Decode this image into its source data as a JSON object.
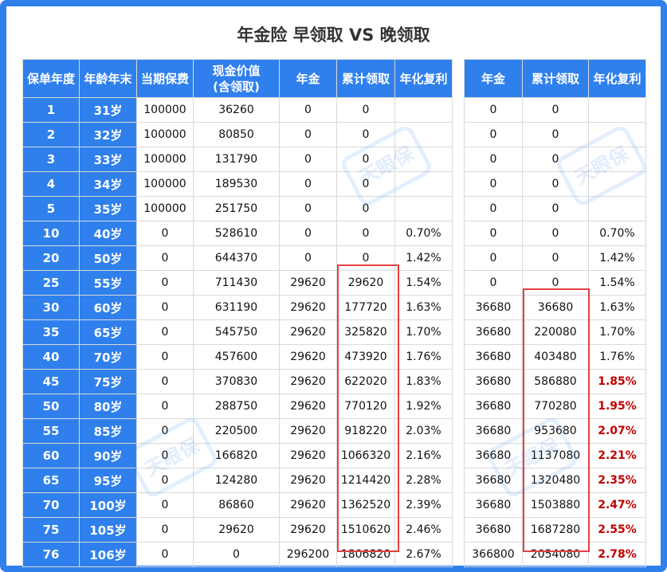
{
  "title": "年金险 早领取 VS 晚领取",
  "watermark": "天眼保",
  "left_table": {
    "headers": [
      "保单年度",
      "年龄年末",
      "当期保费",
      "现金价值(含领取)",
      "年金",
      "累计领取",
      "年化复利"
    ],
    "header_cash_value_line1": "现金价值",
    "header_cash_value_line2": "(含领取)",
    "rows": [
      [
        "1",
        "31岁",
        "100000",
        "36260",
        "0",
        "0",
        ""
      ],
      [
        "2",
        "32岁",
        "100000",
        "80850",
        "0",
        "0",
        ""
      ],
      [
        "3",
        "33岁",
        "100000",
        "131790",
        "0",
        "0",
        ""
      ],
      [
        "4",
        "34岁",
        "100000",
        "189530",
        "0",
        "0",
        ""
      ],
      [
        "5",
        "35岁",
        "100000",
        "251750",
        "0",
        "0",
        ""
      ],
      [
        "10",
        "40岁",
        "0",
        "528610",
        "0",
        "0",
        "0.70%"
      ],
      [
        "20",
        "50岁",
        "0",
        "644370",
        "0",
        "0",
        "1.42%"
      ],
      [
        "25",
        "55岁",
        "0",
        "711430",
        "29620",
        "29620",
        "1.54%"
      ],
      [
        "30",
        "60岁",
        "0",
        "631190",
        "29620",
        "177720",
        "1.63%"
      ],
      [
        "35",
        "65岁",
        "0",
        "545750",
        "29620",
        "325820",
        "1.70%"
      ],
      [
        "40",
        "70岁",
        "0",
        "457600",
        "29620",
        "473920",
        "1.76%"
      ],
      [
        "45",
        "75岁",
        "0",
        "370830",
        "29620",
        "622020",
        "1.83%"
      ],
      [
        "50",
        "80岁",
        "0",
        "288750",
        "29620",
        "770120",
        "1.92%"
      ],
      [
        "55",
        "85岁",
        "0",
        "220500",
        "29620",
        "918220",
        "2.03%"
      ],
      [
        "60",
        "90岁",
        "0",
        "166820",
        "29620",
        "1066320",
        "2.16%"
      ],
      [
        "65",
        "95岁",
        "0",
        "124280",
        "29620",
        "1214420",
        "2.28%"
      ],
      [
        "70",
        "100岁",
        "0",
        "86860",
        "29620",
        "1362520",
        "2.39%"
      ],
      [
        "75",
        "105岁",
        "0",
        "29620",
        "29620",
        "1510620",
        "2.46%"
      ],
      [
        "76",
        "106岁",
        "0",
        "0",
        "296200",
        "1806820",
        "2.67%"
      ]
    ]
  },
  "right_table": {
    "headers": [
      "年金",
      "累计领取",
      "年化复利"
    ],
    "rows": [
      [
        "0",
        "0",
        ""
      ],
      [
        "0",
        "0",
        ""
      ],
      [
        "0",
        "0",
        ""
      ],
      [
        "0",
        "0",
        ""
      ],
      [
        "0",
        "0",
        ""
      ],
      [
        "0",
        "0",
        "0.70%"
      ],
      [
        "0",
        "0",
        "1.42%"
      ],
      [
        "0",
        "0",
        "1.54%"
      ],
      [
        "36680",
        "36680",
        "1.63%"
      ],
      [
        "36680",
        "220080",
        "1.70%"
      ],
      [
        "36680",
        "403480",
        "1.76%"
      ],
      [
        "36680",
        "586880",
        "1.85%"
      ],
      [
        "36680",
        "770280",
        "1.95%"
      ],
      [
        "36680",
        "953680",
        "2.07%"
      ],
      [
        "36680",
        "1137080",
        "2.21%"
      ],
      [
        "36680",
        "1320480",
        "2.35%"
      ],
      [
        "36680",
        "1503880",
        "2.47%"
      ],
      [
        "36680",
        "1687280",
        "2.55%"
      ],
      [
        "366800",
        "2054080",
        "2.78%"
      ]
    ],
    "highlight_rate_from_row": 11
  },
  "colors": {
    "header_bg": "#2f80ed",
    "highlight_box": "#e64040",
    "highlight_rate": "#c00000"
  }
}
